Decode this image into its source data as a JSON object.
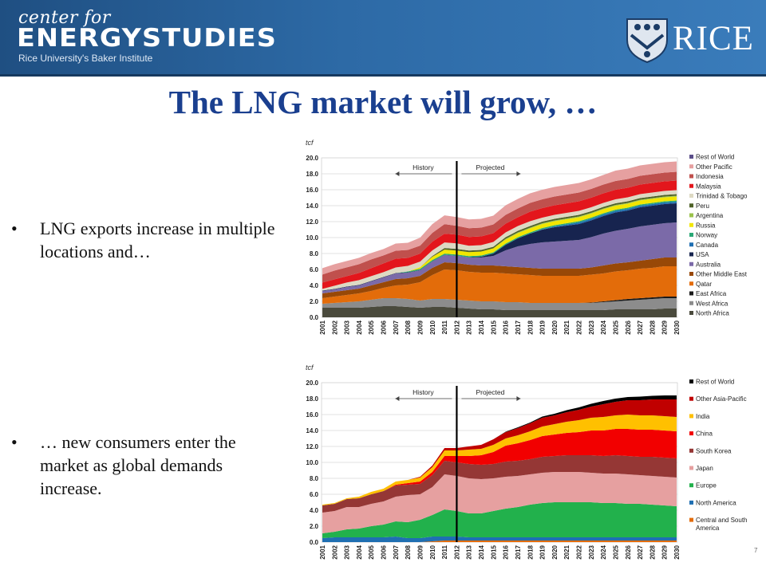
{
  "header": {
    "brand_top": "center for",
    "brand_main": "ENERGYSTUDIES",
    "brand_sub": "Rice University's Baker Institute",
    "logo_text": "RICE"
  },
  "slide": {
    "title": "The LNG market will grow, …",
    "bullet_glyph": "•",
    "bullets": [
      "LNG exports increase in multiple locations and…",
      "… new consumers enter the market as global demands increase."
    ]
  },
  "footer": {
    "page_number": "7"
  },
  "chart_data": [
    {
      "type": "area",
      "unit_label": "tcf",
      "history_label": "History",
      "projected_label": "Projected",
      "x": [
        2001,
        2002,
        2003,
        2004,
        2005,
        2006,
        2007,
        2008,
        2009,
        2010,
        2011,
        2012,
        2013,
        2014,
        2015,
        2016,
        2017,
        2018,
        2019,
        2020,
        2021,
        2022,
        2023,
        2024,
        2025,
        2026,
        2027,
        2028,
        2029,
        2030
      ],
      "ylim": [
        0,
        20
      ],
      "yticks": [
        "0.0",
        "2.0",
        "4.0",
        "6.0",
        "8.0",
        "10.0",
        "12.0",
        "14.0",
        "16.0",
        "18.0",
        "20.0"
      ],
      "split_year": 2012,
      "stacked_order": "bottom-to-top",
      "legend_placement": "right",
      "series": [
        {
          "name": "North Africa",
          "color": "#4a4a3c",
          "values": [
            1.2,
            1.2,
            1.2,
            1.2,
            1.3,
            1.4,
            1.4,
            1.3,
            1.2,
            1.3,
            1.3,
            1.2,
            1.1,
            1.0,
            1.0,
            0.9,
            0.9,
            0.9,
            0.9,
            0.9,
            0.9,
            0.9,
            0.9,
            0.9,
            1.0,
            1.0,
            1.0,
            1.0,
            1.1,
            1.1
          ]
        },
        {
          "name": "West Africa",
          "color": "#8c8c8c",
          "values": [
            0.5,
            0.6,
            0.7,
            0.8,
            0.9,
            1.0,
            1.0,
            1.0,
            0.9,
            1.0,
            1.0,
            1.0,
            1.0,
            1.0,
            1.0,
            1.0,
            1.0,
            0.9,
            0.9,
            0.9,
            0.9,
            0.9,
            0.9,
            1.0,
            1.0,
            1.1,
            1.2,
            1.3,
            1.3,
            1.3
          ]
        },
        {
          "name": "East Africa",
          "color": "#1a1a1a",
          "values": [
            0,
            0,
            0,
            0,
            0,
            0,
            0,
            0,
            0,
            0,
            0,
            0,
            0,
            0,
            0,
            0,
            0,
            0,
            0,
            0,
            0,
            0,
            0.05,
            0.1,
            0.15,
            0.2,
            0.2,
            0.2,
            0.2,
            0.2
          ]
        },
        {
          "name": "Qatar",
          "color": "#e36c0a",
          "values": [
            0.7,
            0.8,
            0.9,
            1.0,
            1.1,
            1.3,
            1.6,
            1.8,
            2.3,
            3.0,
            3.7,
            3.7,
            3.6,
            3.6,
            3.6,
            3.6,
            3.5,
            3.5,
            3.4,
            3.4,
            3.4,
            3.4,
            3.5,
            3.5,
            3.6,
            3.6,
            3.7,
            3.7,
            3.8,
            3.8
          ]
        },
        {
          "name": "Other Middle East",
          "color": "#984807",
          "values": [
            0.6,
            0.6,
            0.6,
            0.6,
            0.7,
            0.7,
            0.8,
            0.8,
            0.8,
            0.9,
            0.9,
            0.9,
            0.9,
            0.9,
            0.9,
            0.9,
            0.9,
            0.9,
            0.9,
            0.9,
            0.9,
            0.9,
            0.9,
            1.0,
            1.0,
            1.0,
            1.0,
            1.1,
            1.1,
            1.1
          ]
        },
        {
          "name": "Australia",
          "color": "#7b6aa8",
          "values": [
            0.3,
            0.3,
            0.4,
            0.4,
            0.5,
            0.6,
            0.7,
            0.7,
            0.7,
            0.8,
            0.9,
            0.9,
            0.9,
            1.0,
            1.2,
            2.0,
            2.6,
            3.0,
            3.3,
            3.4,
            3.5,
            3.6,
            3.8,
            4.0,
            4.1,
            4.2,
            4.3,
            4.3,
            4.3,
            4.4
          ]
        },
        {
          "name": "USA",
          "color": "#17244f",
          "values": [
            0.06,
            0.06,
            0.06,
            0.06,
            0.06,
            0.06,
            0.05,
            0.05,
            0.04,
            0.04,
            0.04,
            0.02,
            0.02,
            0.1,
            0.3,
            0.7,
            1.0,
            1.3,
            1.6,
            1.8,
            1.9,
            2.0,
            2.1,
            2.2,
            2.3,
            2.3,
            2.4,
            2.4,
            2.4,
            2.4
          ]
        },
        {
          "name": "Canada",
          "color": "#1f6fb2",
          "values": [
            0,
            0,
            0,
            0,
            0,
            0,
            0,
            0,
            0,
            0,
            0,
            0,
            0,
            0,
            0,
            0,
            0,
            0,
            0.05,
            0.1,
            0.15,
            0.2,
            0.2,
            0.2,
            0.2,
            0.2,
            0.2,
            0.2,
            0.2,
            0.2
          ]
        },
        {
          "name": "Norway",
          "color": "#2aa876",
          "values": [
            0,
            0,
            0,
            0,
            0,
            0,
            0,
            0.1,
            0.15,
            0.15,
            0.15,
            0.15,
            0.15,
            0.15,
            0.15,
            0.15,
            0.15,
            0.15,
            0.15,
            0.15,
            0.15,
            0.15,
            0.15,
            0.15,
            0.15,
            0.15,
            0.15,
            0.15,
            0.15,
            0.15
          ]
        },
        {
          "name": "Russia",
          "color": "#f2e600",
          "values": [
            0,
            0,
            0,
            0,
            0,
            0,
            0,
            0,
            0.2,
            0.4,
            0.5,
            0.5,
            0.5,
            0.5,
            0.5,
            0.5,
            0.5,
            0.5,
            0.5,
            0.5,
            0.5,
            0.5,
            0.5,
            0.5,
            0.5,
            0.5,
            0.5,
            0.5,
            0.5,
            0.5
          ]
        },
        {
          "name": "Argentina",
          "color": "#9bc34c",
          "values": [
            0,
            0,
            0,
            0,
            0,
            0,
            0,
            0,
            0,
            0,
            0,
            0,
            0,
            0,
            0,
            0.1,
            0.1,
            0.1,
            0.1,
            0.1,
            0.1,
            0.1,
            0.1,
            0.1,
            0.1,
            0.1,
            0.1,
            0.1,
            0.1,
            0.1
          ]
        },
        {
          "name": "Peru",
          "color": "#4f6228",
          "values": [
            0,
            0,
            0,
            0,
            0,
            0,
            0,
            0,
            0,
            0.1,
            0.2,
            0.2,
            0.2,
            0.2,
            0.2,
            0.2,
            0.2,
            0.2,
            0.2,
            0.2,
            0.2,
            0.2,
            0.2,
            0.2,
            0.2,
            0.2,
            0.2,
            0.2,
            0.2,
            0.2
          ]
        },
        {
          "name": "Trinidad & Tobago",
          "color": "#ddd9c3",
          "values": [
            0.2,
            0.4,
            0.5,
            0.6,
            0.6,
            0.6,
            0.7,
            0.7,
            0.7,
            0.7,
            0.7,
            0.7,
            0.6,
            0.6,
            0.6,
            0.6,
            0.6,
            0.6,
            0.5,
            0.5,
            0.5,
            0.5,
            0.5,
            0.5,
            0.5,
            0.5,
            0.5,
            0.5,
            0.5,
            0.5
          ]
        },
        {
          "name": "Malaysia",
          "color": "#e3161c",
          "values": [
            0.8,
            0.8,
            0.8,
            0.9,
            1.0,
            1.1,
            1.1,
            1.0,
            1.0,
            1.1,
            1.1,
            1.1,
            1.1,
            1.1,
            1.1,
            1.1,
            1.1,
            1.2,
            1.2,
            1.2,
            1.2,
            1.2,
            1.2,
            1.2,
            1.2,
            1.2,
            1.2,
            1.2,
            1.2,
            1.2
          ]
        },
        {
          "name": "Indonesia",
          "color": "#c0504d",
          "values": [
            1.0,
            1.1,
            1.1,
            1.1,
            1.1,
            1.0,
            1.0,
            1.0,
            1.0,
            1.1,
            1.2,
            1.1,
            1.1,
            1.1,
            1.1,
            1.1,
            1.1,
            1.1,
            1.1,
            1.1,
            1.1,
            1.1,
            1.1,
            1.1,
            1.1,
            1.1,
            1.1,
            1.1,
            1.1,
            1.1
          ]
        },
        {
          "name": "Other Pacific",
          "color": "#e6a0a0",
          "values": [
            0.8,
            0.8,
            0.8,
            0.8,
            0.8,
            0.8,
            0.9,
            0.9,
            1.0,
            1.1,
            1.1,
            1.1,
            1.1,
            1.1,
            1.1,
            1.2,
            1.2,
            1.2,
            1.2,
            1.2,
            1.2,
            1.2,
            1.2,
            1.2,
            1.3,
            1.3,
            1.3,
            1.3,
            1.3,
            1.3
          ]
        },
        {
          "name": "Rest of World",
          "color": "#5b4e8a",
          "values": [
            0,
            0,
            0,
            0,
            0,
            0,
            0,
            0,
            0,
            0,
            0,
            0,
            0,
            0,
            0,
            0,
            0,
            0,
            0,
            0,
            0,
            0,
            0,
            0,
            0,
            0,
            0,
            0,
            0,
            0
          ]
        }
      ]
    },
    {
      "type": "area",
      "unit_label": "tcf",
      "history_label": "History",
      "projected_label": "Projected",
      "x": [
        2001,
        2002,
        2003,
        2004,
        2005,
        2006,
        2007,
        2008,
        2009,
        2010,
        2011,
        2012,
        2013,
        2014,
        2015,
        2016,
        2017,
        2018,
        2019,
        2020,
        2021,
        2022,
        2023,
        2024,
        2025,
        2026,
        2027,
        2028,
        2029,
        2030
      ],
      "ylim": [
        0,
        20
      ],
      "yticks": [
        "0.0",
        "2.0",
        "4.0",
        "6.0",
        "8.0",
        "10.0",
        "12.0",
        "14.0",
        "16.0",
        "18.0",
        "20.0"
      ],
      "split_year": 2012,
      "stacked_order": "bottom-to-top",
      "legend_placement": "right",
      "series": [
        {
          "name": "Central and South America",
          "color": "#e36c0a",
          "values": [
            0,
            0,
            0,
            0,
            0,
            0,
            0,
            0,
            0,
            0.1,
            0.2,
            0.2,
            0.2,
            0.2,
            0.2,
            0.2,
            0.2,
            0.2,
            0.2,
            0.2,
            0.2,
            0.2,
            0.2,
            0.2,
            0.2,
            0.2,
            0.2,
            0.2,
            0.2,
            0.2
          ]
        },
        {
          "name": "North America",
          "color": "#1f6fb2",
          "values": [
            0.5,
            0.6,
            0.6,
            0.6,
            0.6,
            0.6,
            0.7,
            0.5,
            0.5,
            0.6,
            0.5,
            0.5,
            0.4,
            0.4,
            0.4,
            0.4,
            0.4,
            0.4,
            0.4,
            0.4,
            0.4,
            0.4,
            0.4,
            0.4,
            0.4,
            0.4,
            0.4,
            0.4,
            0.4,
            0.4
          ]
        },
        {
          "name": "Europe",
          "color": "#22b14c",
          "values": [
            0.6,
            0.7,
            1.0,
            1.1,
            1.4,
            1.6,
            1.9,
            2.0,
            2.3,
            2.7,
            3.4,
            3.2,
            3.0,
            3.0,
            3.3,
            3.6,
            3.8,
            4.1,
            4.3,
            4.4,
            4.4,
            4.4,
            4.4,
            4.3,
            4.3,
            4.2,
            4.2,
            4.1,
            4.0,
            3.9
          ]
        },
        {
          "name": "Japan",
          "color": "#e6a0a0",
          "values": [
            2.6,
            2.6,
            2.8,
            2.7,
            2.8,
            2.9,
            3.1,
            3.4,
            3.2,
            3.5,
            4.4,
            4.4,
            4.4,
            4.3,
            4.1,
            4.0,
            3.9,
            3.8,
            3.8,
            3.8,
            3.8,
            3.8,
            3.7,
            3.7,
            3.7,
            3.7,
            3.6,
            3.6,
            3.6,
            3.6
          ]
        },
        {
          "name": "South Korea",
          "color": "#953735",
          "values": [
            0.9,
            0.9,
            1.0,
            1.1,
            1.2,
            1.3,
            1.4,
            1.3,
            1.3,
            1.5,
            1.7,
            1.7,
            1.8,
            1.8,
            1.8,
            1.9,
            1.9,
            1.9,
            2.0,
            2.0,
            2.1,
            2.1,
            2.2,
            2.2,
            2.3,
            2.3,
            2.3,
            2.4,
            2.4,
            2.4
          ]
        },
        {
          "name": "China",
          "color": "#f20000",
          "values": [
            0,
            0,
            0,
            0,
            0,
            0,
            0.1,
            0.2,
            0.3,
            0.4,
            0.6,
            0.8,
            1.0,
            1.2,
            1.5,
            2.0,
            2.2,
            2.4,
            2.6,
            2.7,
            2.8,
            2.9,
            3.1,
            3.2,
            3.3,
            3.4,
            3.4,
            3.4,
            3.4,
            3.4
          ]
        },
        {
          "name": "India",
          "color": "#ffc000",
          "values": [
            0.1,
            0.1,
            0.1,
            0.2,
            0.3,
            0.3,
            0.4,
            0.4,
            0.5,
            0.6,
            0.7,
            0.7,
            0.8,
            0.8,
            0.9,
            0.9,
            1.0,
            1.1,
            1.2,
            1.3,
            1.4,
            1.5,
            1.6,
            1.7,
            1.7,
            1.8,
            1.8,
            1.8,
            1.8,
            1.8
          ]
        },
        {
          "name": "Other Asia-Pacific",
          "color": "#c00000",
          "values": [
            0,
            0,
            0,
            0,
            0,
            0,
            0,
            0,
            0.1,
            0.2,
            0.3,
            0.3,
            0.4,
            0.5,
            0.7,
            0.8,
            0.9,
            1.0,
            1.1,
            1.1,
            1.2,
            1.3,
            1.4,
            1.6,
            1.7,
            1.8,
            1.9,
            2.0,
            2.1,
            2.2
          ]
        },
        {
          "name": "Rest of World",
          "color": "#000000",
          "values": [
            0,
            0,
            0,
            0,
            0,
            0,
            0,
            0,
            0,
            0,
            0,
            0,
            0,
            0,
            0,
            0.05,
            0.1,
            0.1,
            0.15,
            0.2,
            0.25,
            0.3,
            0.35,
            0.4,
            0.4,
            0.4,
            0.45,
            0.45,
            0.5,
            0.5
          ]
        }
      ]
    }
  ]
}
